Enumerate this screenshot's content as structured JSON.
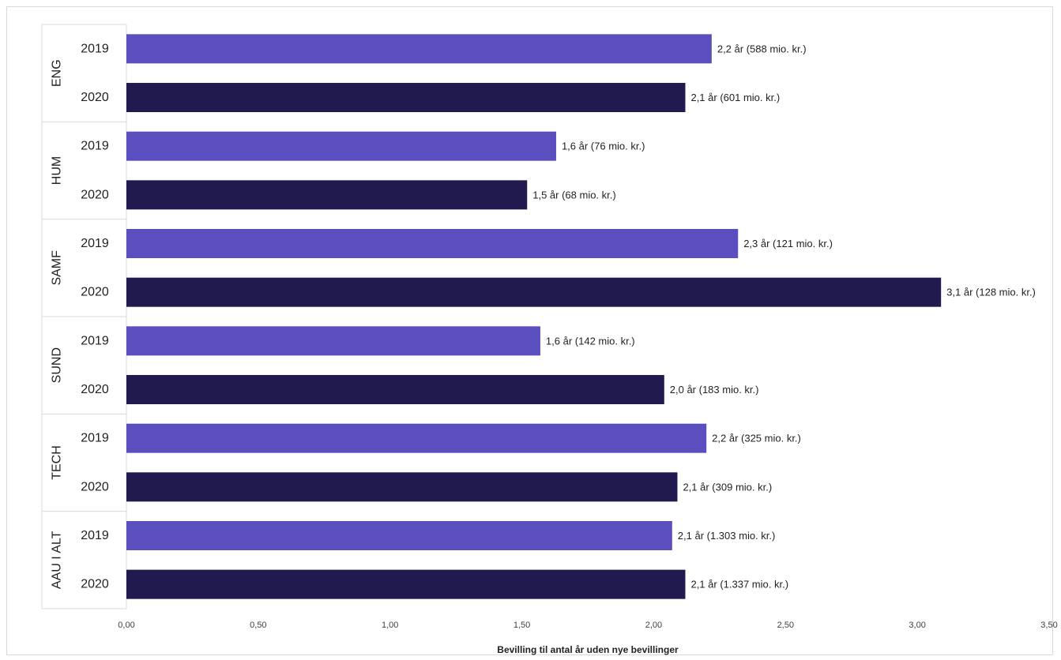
{
  "chart_data": {
    "type": "bar",
    "orientation": "horizontal",
    "title": "",
    "xlabel": "Bevilling til antal år uden nye bevillinger",
    "ylabel": "",
    "xlim": [
      0,
      3.5
    ],
    "xticks": [
      "0,00",
      "0,50",
      "1,00",
      "1,50",
      "2,00",
      "2,50",
      "3,00",
      "3,50"
    ],
    "grid": false,
    "legend": "none",
    "colors": {
      "2019": "#5b4fc0",
      "2020": "#201a4e"
    },
    "groups": [
      {
        "name": "ENG",
        "bars": [
          {
            "year": "2019",
            "value": 2.22,
            "label": "2,2 år (588 mio. kr.)"
          },
          {
            "year": "2020",
            "value": 2.12,
            "label": "2,1 år (601 mio. kr.)"
          }
        ]
      },
      {
        "name": "HUM",
        "bars": [
          {
            "year": "2019",
            "value": 1.63,
            "label": "1,6 år (76 mio. kr.)"
          },
          {
            "year": "2020",
            "value": 1.52,
            "label": "1,5 år (68 mio. kr.)"
          }
        ]
      },
      {
        "name": "SAMF",
        "bars": [
          {
            "year": "2019",
            "value": 2.32,
            "label": "2,3 år (121 mio. kr.)"
          },
          {
            "year": "2020",
            "value": 3.09,
            "label": "3,1 år (128 mio. kr.)"
          }
        ]
      },
      {
        "name": "SUND",
        "bars": [
          {
            "year": "2019",
            "value": 1.57,
            "label": "1,6 år (142 mio. kr.)"
          },
          {
            "year": "2020",
            "value": 2.04,
            "label": "2,0 år (183 mio. kr.)"
          }
        ]
      },
      {
        "name": "TECH",
        "bars": [
          {
            "year": "2019",
            "value": 2.2,
            "label": "2,2 år (325 mio. kr.)"
          },
          {
            "year": "2020",
            "value": 2.09,
            "label": "2,1 år (309 mio. kr.)"
          }
        ]
      },
      {
        "name": "AAU I ALT",
        "bars": [
          {
            "year": "2019",
            "value": 2.07,
            "label": "2,1 år (1.303 mio. kr.)"
          },
          {
            "year": "2020",
            "value": 2.12,
            "label": "2,1 år (1.337 mio. kr.)"
          }
        ]
      }
    ]
  }
}
